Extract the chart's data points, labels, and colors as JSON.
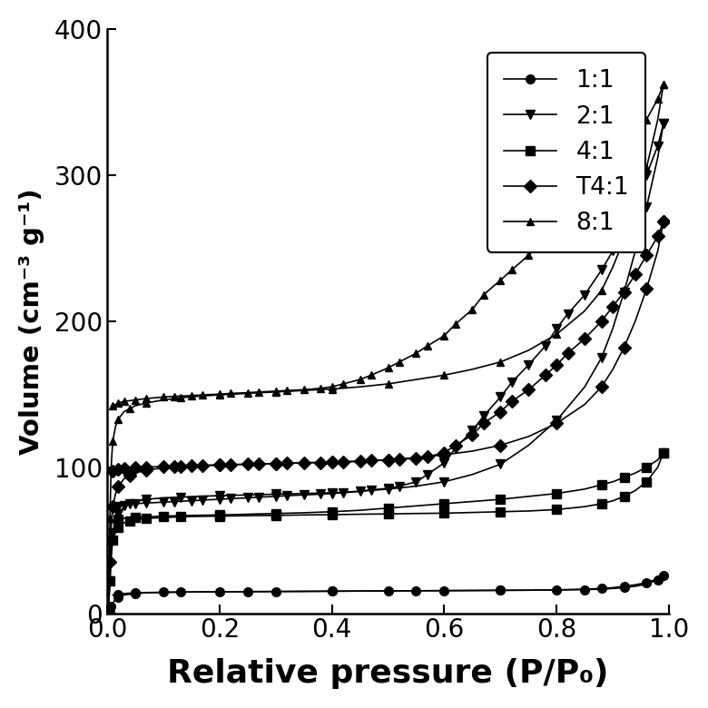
{
  "xlabel": "Relative pressure (P/P₀)",
  "ylabel": "Volume (cm⁻³ g⁻¹)",
  "xlim": [
    0.0,
    1.0
  ],
  "ylim": [
    0,
    400
  ],
  "yticks": [
    0,
    100,
    200,
    300,
    400
  ],
  "xticks": [
    0.0,
    0.2,
    0.4,
    0.6,
    0.8,
    1.0
  ],
  "legend_labels": [
    "1:1",
    "2:1",
    "4:1",
    "T4:1",
    "8:1"
  ],
  "markers": [
    "o",
    "v",
    "s",
    "D",
    "^"
  ],
  "marker_sizes": [
    7,
    7,
    7,
    7,
    6
  ],
  "series": {
    "1:1": {
      "adsorption_x": [
        0.001,
        0.003,
        0.005,
        0.007,
        0.01,
        0.015,
        0.02,
        0.03,
        0.04,
        0.05,
        0.07,
        0.1,
        0.13,
        0.16,
        0.2,
        0.25,
        0.3,
        0.35,
        0.4,
        0.45,
        0.5,
        0.55,
        0.6,
        0.65,
        0.7,
        0.75,
        0.8,
        0.85,
        0.88,
        0.9,
        0.92,
        0.94,
        0.96,
        0.98,
        0.99
      ],
      "adsorption_y": [
        0.2,
        1.0,
        2.5,
        4.5,
        7.0,
        9.5,
        11.0,
        12.5,
        13.0,
        13.5,
        14.0,
        14.3,
        14.5,
        14.6,
        14.7,
        14.8,
        14.9,
        15.0,
        15.1,
        15.2,
        15.3,
        15.4,
        15.5,
        15.6,
        15.7,
        15.8,
        16.0,
        16.2,
        16.5,
        17.0,
        17.5,
        18.5,
        20.0,
        23.0,
        26.0
      ],
      "desorption_x": [
        0.99,
        0.98,
        0.96,
        0.94,
        0.92,
        0.9,
        0.88,
        0.85,
        0.8,
        0.75,
        0.7,
        0.65,
        0.6,
        0.55,
        0.5,
        0.45,
        0.4,
        0.35,
        0.3,
        0.25,
        0.2,
        0.15,
        0.1,
        0.07,
        0.05,
        0.03,
        0.02,
        0.01
      ],
      "desorption_y": [
        26.0,
        23.5,
        21.0,
        19.5,
        18.5,
        17.5,
        17.0,
        16.5,
        16.0,
        15.8,
        15.7,
        15.6,
        15.5,
        15.4,
        15.3,
        15.2,
        15.1,
        15.0,
        14.9,
        14.8,
        14.7,
        14.6,
        14.4,
        14.2,
        14.0,
        13.5,
        13.0,
        12.5
      ]
    },
    "4:1": {
      "adsorption_x": [
        0.001,
        0.003,
        0.005,
        0.007,
        0.01,
        0.015,
        0.02,
        0.03,
        0.04,
        0.05,
        0.07,
        0.1,
        0.13,
        0.16,
        0.2,
        0.25,
        0.3,
        0.35,
        0.4,
        0.45,
        0.5,
        0.55,
        0.6,
        0.65,
        0.7,
        0.75,
        0.8,
        0.85,
        0.88,
        0.9,
        0.92,
        0.94,
        0.96,
        0.98,
        0.99
      ],
      "adsorption_y": [
        1.0,
        8.0,
        22.0,
        38.0,
        50.0,
        56.0,
        59.0,
        62.0,
        63.0,
        64.0,
        65.0,
        65.5,
        66.0,
        66.3,
        66.5,
        66.8,
        67.0,
        67.3,
        67.5,
        67.8,
        68.0,
        68.3,
        68.5,
        69.0,
        69.5,
        70.0,
        71.0,
        73.0,
        75.0,
        77.0,
        80.0,
        84.0,
        90.0,
        100.0,
        110.0
      ],
      "desorption_x": [
        0.99,
        0.98,
        0.96,
        0.94,
        0.92,
        0.9,
        0.88,
        0.85,
        0.8,
        0.75,
        0.7,
        0.65,
        0.6,
        0.55,
        0.5,
        0.45,
        0.4,
        0.35,
        0.3,
        0.25,
        0.2,
        0.15,
        0.1,
        0.07,
        0.05,
        0.03,
        0.02,
        0.01
      ],
      "desorption_y": [
        110.0,
        105.0,
        100.0,
        96.0,
        93.0,
        90.0,
        88.0,
        85.0,
        82.0,
        80.0,
        78.0,
        76.5,
        75.0,
        73.5,
        72.0,
        70.5,
        69.5,
        68.8,
        68.3,
        67.8,
        67.3,
        67.0,
        66.5,
        66.0,
        65.5,
        65.0,
        64.5,
        63.5
      ]
    },
    "2:1": {
      "adsorption_x": [
        0.001,
        0.003,
        0.005,
        0.007,
        0.01,
        0.015,
        0.02,
        0.03,
        0.04,
        0.05,
        0.07,
        0.1,
        0.13,
        0.16,
        0.2,
        0.25,
        0.3,
        0.35,
        0.4,
        0.45,
        0.5,
        0.55,
        0.6,
        0.65,
        0.7,
        0.75,
        0.8,
        0.85,
        0.88,
        0.9,
        0.92,
        0.94,
        0.96,
        0.98,
        0.99
      ],
      "adsorption_y": [
        1.0,
        8.0,
        22.0,
        40.0,
        55.0,
        63.0,
        68.0,
        73.0,
        75.0,
        76.5,
        78.0,
        79.0,
        79.5,
        80.0,
        80.5,
        81.0,
        81.5,
        82.0,
        82.5,
        83.5,
        85.0,
        87.0,
        90.0,
        95.0,
        102.0,
        115.0,
        132.0,
        155.0,
        175.0,
        195.0,
        220.0,
        248.0,
        278.0,
        312.0,
        335.0
      ],
      "desorption_x": [
        0.99,
        0.98,
        0.96,
        0.94,
        0.92,
        0.9,
        0.88,
        0.85,
        0.82,
        0.8,
        0.78,
        0.75,
        0.72,
        0.7,
        0.67,
        0.65,
        0.62,
        0.6,
        0.57,
        0.55,
        0.52,
        0.5,
        0.47,
        0.45,
        0.42,
        0.4,
        0.38,
        0.35,
        0.32,
        0.3,
        0.27,
        0.25,
        0.22,
        0.2,
        0.17,
        0.15,
        0.12,
        0.1,
        0.07,
        0.05,
        0.03,
        0.02,
        0.01
      ],
      "desorption_y": [
        335.0,
        320.0,
        300.0,
        282.0,
        265.0,
        248.0,
        235.0,
        218.0,
        205.0,
        195.0,
        183.0,
        170.0,
        158.0,
        148.0,
        135.0,
        125.0,
        113.0,
        103.0,
        95.0,
        90.0,
        87.0,
        85.5,
        84.5,
        83.5,
        82.5,
        82.0,
        81.5,
        81.0,
        80.5,
        80.0,
        79.5,
        79.0,
        78.5,
        78.0,
        77.5,
        77.0,
        76.5,
        76.0,
        75.5,
        75.0,
        74.0,
        73.0,
        72.0
      ]
    },
    "T4:1": {
      "adsorption_x": [
        0.001,
        0.003,
        0.005,
        0.007,
        0.01,
        0.015,
        0.02,
        0.03,
        0.04,
        0.05,
        0.07,
        0.1,
        0.13,
        0.16,
        0.2,
        0.25,
        0.3,
        0.35,
        0.4,
        0.45,
        0.5,
        0.55,
        0.6,
        0.65,
        0.7,
        0.75,
        0.8,
        0.85,
        0.88,
        0.9,
        0.92,
        0.94,
        0.96,
        0.98,
        0.99
      ],
      "adsorption_y": [
        1.5,
        12.0,
        35.0,
        58.0,
        73.0,
        82.0,
        87.0,
        92.0,
        94.0,
        96.0,
        98.0,
        99.5,
        100.5,
        101.0,
        101.5,
        102.0,
        102.5,
        103.0,
        103.5,
        104.0,
        105.0,
        106.5,
        108.5,
        111.0,
        115.0,
        121.0,
        130.0,
        143.0,
        155.0,
        167.0,
        182.0,
        200.0,
        222.0,
        248.0,
        268.0
      ],
      "desorption_x": [
        0.99,
        0.98,
        0.96,
        0.94,
        0.92,
        0.9,
        0.88,
        0.85,
        0.82,
        0.8,
        0.78,
        0.75,
        0.72,
        0.7,
        0.67,
        0.65,
        0.62,
        0.6,
        0.57,
        0.55,
        0.52,
        0.5,
        0.47,
        0.45,
        0.42,
        0.4,
        0.38,
        0.35,
        0.32,
        0.3,
        0.27,
        0.25,
        0.22,
        0.2,
        0.17,
        0.15,
        0.12,
        0.1,
        0.07,
        0.05,
        0.03,
        0.02,
        0.01
      ],
      "desorption_y": [
        268.0,
        258.0,
        245.0,
        232.0,
        220.0,
        210.0,
        200.0,
        188.0,
        178.0,
        170.0,
        163.0,
        153.0,
        145.0,
        138.0,
        130.0,
        122.0,
        115.0,
        110.0,
        107.0,
        106.0,
        105.5,
        105.0,
        104.5,
        104.0,
        103.8,
        103.5,
        103.2,
        103.0,
        102.8,
        102.5,
        102.2,
        102.0,
        101.8,
        101.5,
        101.2,
        101.0,
        100.7,
        100.5,
        100.0,
        99.5,
        99.0,
        98.5,
        97.5
      ]
    },
    "8:1": {
      "adsorption_x": [
        0.001,
        0.003,
        0.005,
        0.007,
        0.01,
        0.015,
        0.02,
        0.03,
        0.04,
        0.05,
        0.07,
        0.1,
        0.13,
        0.16,
        0.2,
        0.25,
        0.3,
        0.35,
        0.4,
        0.45,
        0.5,
        0.55,
        0.6,
        0.65,
        0.7,
        0.75,
        0.8,
        0.85,
        0.88,
        0.9,
        0.92,
        0.94,
        0.96,
        0.98,
        0.99
      ],
      "adsorption_y": [
        3.0,
        25.0,
        65.0,
        100.0,
        118.0,
        128.0,
        133.0,
        138.0,
        140.0,
        142.0,
        144.0,
        146.0,
        147.5,
        148.5,
        149.5,
        150.5,
        151.5,
        152.5,
        153.5,
        155.0,
        157.0,
        160.0,
        163.0,
        167.0,
        172.0,
        180.0,
        191.0,
        207.0,
        221.0,
        237.0,
        256.0,
        278.0,
        305.0,
        338.0,
        362.0
      ],
      "desorption_x": [
        0.99,
        0.98,
        0.96,
        0.94,
        0.92,
        0.9,
        0.88,
        0.85,
        0.82,
        0.8,
        0.78,
        0.75,
        0.72,
        0.7,
        0.67,
        0.65,
        0.62,
        0.6,
        0.57,
        0.55,
        0.52,
        0.5,
        0.47,
        0.45,
        0.42,
        0.4,
        0.38,
        0.35,
        0.32,
        0.3,
        0.27,
        0.25,
        0.22,
        0.2,
        0.17,
        0.15,
        0.12,
        0.1,
        0.07,
        0.05,
        0.03,
        0.02,
        0.01
      ],
      "desorption_y": [
        362.0,
        352.0,
        338.0,
        326.0,
        315.0,
        305.0,
        295.0,
        283.0,
        272.0,
        264.0,
        256.0,
        245.0,
        235.0,
        228.0,
        218.0,
        208.0,
        198.0,
        190.0,
        183.0,
        178.0,
        172.0,
        168.0,
        163.0,
        160.0,
        157.0,
        155.0,
        154.0,
        153.0,
        152.5,
        152.0,
        151.5,
        151.0,
        150.5,
        150.0,
        149.5,
        149.0,
        148.5,
        148.0,
        147.0,
        146.0,
        145.0,
        144.0,
        142.0
      ]
    }
  }
}
